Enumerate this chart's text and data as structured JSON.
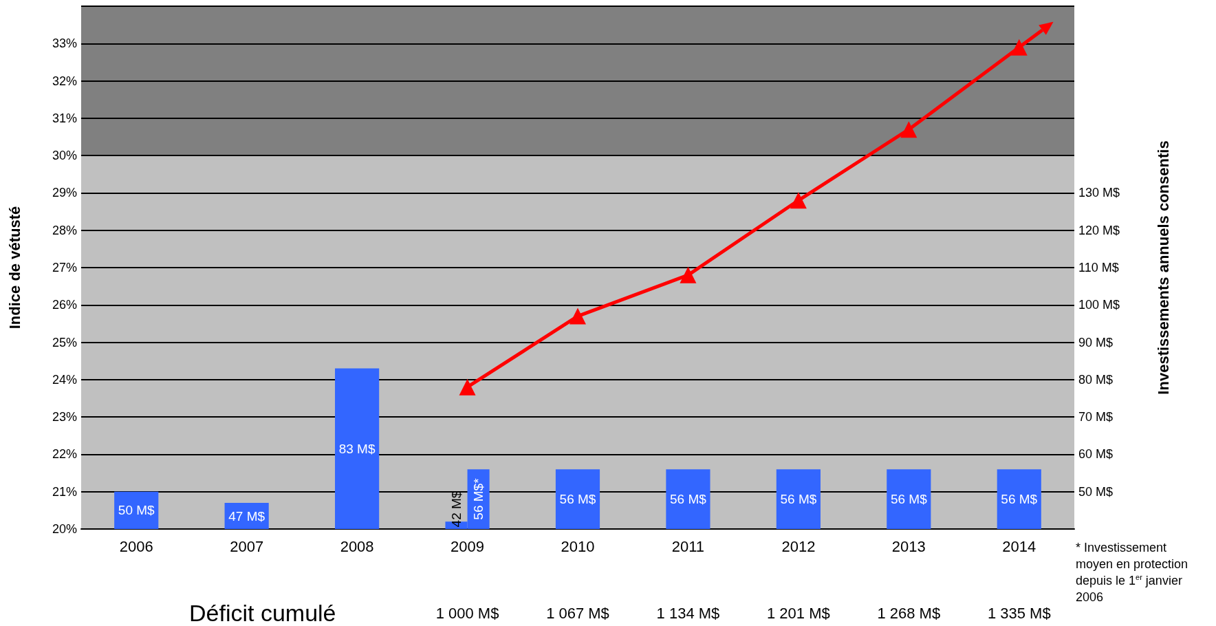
{
  "chart_data": {
    "type": "bar",
    "categories": [
      "2006",
      "2007",
      "2008",
      "2009",
      "2010",
      "2011",
      "2012",
      "2013",
      "2014"
    ],
    "series": [
      {
        "axis": "y2",
        "color": "#3366ff",
        "values": [
          50,
          47,
          83,
          42,
          56,
          56,
          56,
          56,
          56
        ],
        "value_labels": [
          "50 M$",
          "47 M$",
          "83 M$",
          "42 M$",
          "56 M$",
          "56 M$",
          "56 M$",
          "56 M$",
          "56 M$"
        ]
      },
      {
        "axis": "y2",
        "color": "#3366ff",
        "values": [
          null,
          null,
          null,
          56,
          null,
          null,
          null,
          null,
          null
        ],
        "value_labels": [
          null,
          null,
          null,
          "56 M$*",
          null,
          null,
          null,
          null,
          null
        ]
      },
      {
        "type": "line",
        "color": "#ff0000",
        "marker": "triangle",
        "values": [
          null,
          null,
          null,
          23.8,
          25.7,
          26.8,
          28.8,
          30.7,
          32.9
        ]
      }
    ],
    "ylabel": "Indice de vétusté",
    "y2label": "Investissements annuels consentis",
    "ylim": [
      20,
      34
    ],
    "yticks": [
      {
        "value": 20,
        "label": "20%"
      },
      {
        "value": 21,
        "label": "21%"
      },
      {
        "value": 22,
        "label": "22%"
      },
      {
        "value": 23,
        "label": "23%"
      },
      {
        "value": 24,
        "label": "24%"
      },
      {
        "value": 25,
        "label": "25%"
      },
      {
        "value": 26,
        "label": "26%"
      },
      {
        "value": 27,
        "label": "27%"
      },
      {
        "value": 28,
        "label": "28%"
      },
      {
        "value": 29,
        "label": "29%"
      },
      {
        "value": 30,
        "label": "30%"
      },
      {
        "value": 31,
        "label": "31%"
      },
      {
        "value": 32,
        "label": "32%"
      },
      {
        "value": 33,
        "label": "33%"
      }
    ],
    "y2lim": [
      40,
      180
    ],
    "y2ticks": [
      {
        "value": 50,
        "label": "50 M$"
      },
      {
        "value": 60,
        "label": "60 M$"
      },
      {
        "value": 70,
        "label": "70 M$"
      },
      {
        "value": 80,
        "label": "80 M$"
      },
      {
        "value": 90,
        "label": "90 M$"
      },
      {
        "value": 100,
        "label": "100 M$"
      },
      {
        "value": 110,
        "label": "110 M$"
      },
      {
        "value": 120,
        "label": "120 M$"
      },
      {
        "value": 130,
        "label": "130 M$"
      }
    ],
    "bands": [
      {
        "axis": "y",
        "from": 20,
        "to": 30,
        "color": "#c0c0c0"
      },
      {
        "axis": "y",
        "from": 30,
        "to": 34,
        "color": "#808080"
      }
    ],
    "grid": "y",
    "annotations": [
      "Déficit cumulé",
      "* Investissement moyen en protection depuis le 1$^{er}$ janvier 2006",
      "1 000 M$",
      "1 067 M$",
      "1 134 M$",
      "1 201 M$",
      "1 268 M$",
      "1 335 M$"
    ]
  }
}
